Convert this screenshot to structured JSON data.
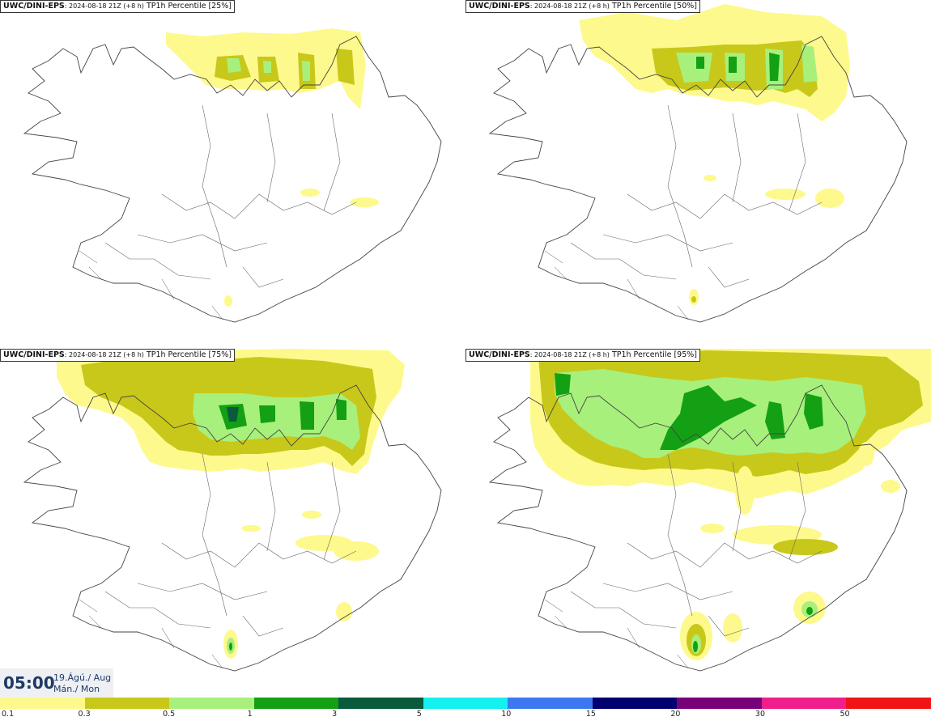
{
  "panels": [
    {
      "model": "UWC/DINI-EPS",
      "run": ": 2024-08-18 21Z (+8 h)",
      "field": "TP1h Percentile [25%]"
    },
    {
      "model": "UWC/DINI-EPS",
      "run": ": 2024-08-18 21Z (+8 h)",
      "field": "TP1h Percentile [50%]"
    },
    {
      "model": "UWC/DINI-EPS",
      "run": ": 2024-08-18 21Z (+8 h)",
      "field": "TP1h Percentile [75%]"
    },
    {
      "model": "UWC/DINI-EPS",
      "run": ": 2024-08-18 21Z (+8 h)",
      "field": "TP1h Percentile [95%]"
    }
  ],
  "valid_time": {
    "clock": "05:00",
    "date_line1": "19.Ágú./ Aug",
    "date_line2": "Mán./ Mon"
  },
  "colorbar": {
    "labels": [
      "0.1",
      "0.3",
      "0.5",
      "1",
      "3",
      "5",
      "10",
      "15",
      "20",
      "30",
      "50"
    ],
    "colors": [
      "#fdf98c",
      "#c8c81a",
      "#a8f07c",
      "#14a014",
      "#0a5a3c",
      "#14f0f0",
      "#3c78f0",
      "#000070",
      "#780078",
      "#f01e8c",
      "#f01414"
    ]
  }
}
